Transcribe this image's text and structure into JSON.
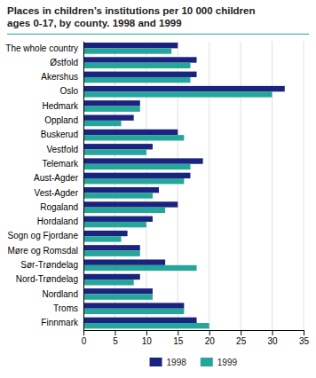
{
  "chart_data": {
    "type": "bar",
    "orientation": "horizontal",
    "title": "Places in children’s institutions per 10 000 children\nages 0-17, by county.  1998 and 1999",
    "categories": [
      "The whole country",
      "Østfold",
      "Akershus",
      "Oslo",
      "Hedmark",
      "Oppland",
      "Buskerud",
      "Vestfold",
      "Telemark",
      "Aust-Agder",
      "Vest-Agder",
      "Rogaland",
      "Hordaland",
      "Sogn og Fjordane",
      "Møre og Romsdal",
      "Sør-Trøndelag",
      "Nord-Trøndelag",
      "Nordland",
      "Troms",
      "Finnmark"
    ],
    "series": [
      {
        "name": "1998",
        "color": "#1a237e",
        "values": [
          15,
          18,
          18,
          32,
          9,
          8,
          15,
          11,
          19,
          17,
          12,
          15,
          11,
          7,
          9,
          13,
          9,
          11,
          16,
          18
        ]
      },
      {
        "name": "1999",
        "color": "#26a69a",
        "values": [
          14,
          17,
          17,
          30,
          9,
          6,
          16,
          10,
          17,
          16,
          11,
          13,
          10,
          6,
          9,
          18,
          8,
          11,
          16,
          20
        ]
      }
    ],
    "xlim": [
      0,
      35
    ],
    "xticks": [
      0,
      5,
      10,
      15,
      20,
      25,
      30,
      35
    ],
    "grid": true,
    "legend": "bottom"
  }
}
